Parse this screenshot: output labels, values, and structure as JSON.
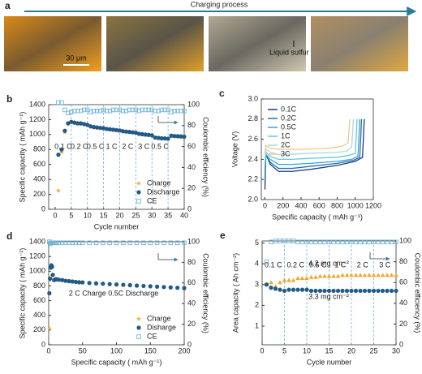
{
  "panel_a": {
    "label": "a",
    "title": "Charging process",
    "scale_bar": "30 μm",
    "annotation": "Liquid sulfur"
  },
  "chart_data": [
    {
      "type": "scatter",
      "panel_label": "b",
      "xlabel": "Cycle number",
      "ylabel": "Specific capacity ( mAh g⁻¹)",
      "y2label": "Coulombic efficiency (%)",
      "xlim": [
        -2,
        40
      ],
      "xticks": [
        0,
        5,
        10,
        15,
        20,
        25,
        30,
        35,
        40
      ],
      "ylim": [
        0,
        1400
      ],
      "yticks": [
        0,
        200,
        400,
        600,
        800,
        1000,
        1200,
        1400
      ],
      "y2lim": [
        0,
        100
      ],
      "y2ticks": [
        0,
        20,
        40,
        60,
        80,
        100
      ],
      "dividers": [
        5,
        10,
        15,
        20,
        25,
        30,
        35
      ],
      "rate_labels": [
        "0.1 C",
        "0.2 C",
        "0.5 C",
        "1 C",
        "2 C",
        "3 C",
        "0.5 C"
      ],
      "legend": "lower right",
      "x": [
        1,
        2,
        3,
        4,
        5,
        6,
        7,
        8,
        9,
        10,
        11,
        12,
        13,
        14,
        15,
        16,
        17,
        18,
        19,
        20,
        21,
        22,
        23,
        24,
        25,
        26,
        27,
        28,
        29,
        30,
        31,
        32,
        33,
        34,
        35,
        36,
        37,
        38,
        39,
        40
      ],
      "series": [
        {
          "name": "Charge",
          "color": "#f0a830",
          "marker": "star",
          "values": [
            250,
            760,
            1030,
            1140,
            1160,
            1150,
            1145,
            1140,
            1135,
            1125,
            1105,
            1095,
            1090,
            1085,
            1080,
            1070,
            1065,
            1060,
            1055,
            1050,
            1040,
            1035,
            1030,
            1025,
            1020,
            1005,
            1000,
            995,
            990,
            985,
            955,
            950,
            945,
            943,
            940,
            980,
            975,
            973,
            970,
            967
          ]
        },
        {
          "name": "Discharge",
          "color": "#1f5a8a",
          "marker": "circle",
          "values": [
            730,
            800,
            1050,
            1150,
            1170,
            1160,
            1150,
            1150,
            1140,
            1130,
            1110,
            1100,
            1095,
            1090,
            1085,
            1075,
            1070,
            1065,
            1060,
            1055,
            1045,
            1040,
            1035,
            1030,
            1025,
            1010,
            1005,
            1000,
            995,
            990,
            960,
            955,
            950,
            948,
            945,
            985,
            980,
            978,
            975,
            972
          ]
        },
        {
          "name": "CE",
          "color": "#6fb6d8",
          "marker": "square-open",
          "axis": "y2",
          "values": [
            102,
            102,
            95,
            92,
            93,
            94,
            94,
            94,
            95,
            95,
            93,
            94,
            94,
            94,
            95,
            94,
            94,
            95,
            95,
            95,
            94,
            94,
            95,
            95,
            95,
            94,
            95,
            95,
            95,
            95,
            94,
            94,
            95,
            95,
            95,
            93,
            94,
            94,
            94,
            94
          ]
        }
      ]
    },
    {
      "type": "line",
      "panel_label": "c",
      "xlabel": "Specific capacity ( mAh g⁻¹)",
      "ylabel": "Voltage (V)",
      "xlim": [
        -40,
        1200
      ],
      "xticks": [
        0,
        200,
        400,
        600,
        800,
        1000,
        1200
      ],
      "ylim": [
        2.0,
        3.0
      ],
      "yticks": [
        {
          "value": 2,
          "label": "2.0"
        },
        2.2,
        2.4,
        2.6,
        2.8,
        {
          "value": 3,
          "label": "3.0"
        }
      ],
      "legend": "upper left",
      "series": [
        {
          "name": "0.1C",
          "color": "#1b3e78",
          "x": [
            0,
            10,
            60,
            150,
            300,
            500,
            800,
            1000,
            1080,
            1090,
            1100
          ],
          "values": [
            2.1,
            2.45,
            2.35,
            2.28,
            2.28,
            2.3,
            2.34,
            2.38,
            2.42,
            2.6,
            2.8
          ]
        },
        {
          "name": "0.2C",
          "color": "#2270b5",
          "x": [
            0,
            10,
            60,
            150,
            300,
            500,
            800,
            980,
            1050,
            1060,
            1070
          ],
          "values": [
            2.2,
            2.44,
            2.37,
            2.31,
            2.31,
            2.33,
            2.36,
            2.39,
            2.42,
            2.6,
            2.8
          ]
        },
        {
          "name": "0.5C",
          "color": "#3aa0d8",
          "x": [
            0,
            10,
            60,
            150,
            300,
            500,
            800,
            960,
            1030,
            1040,
            1050
          ],
          "values": [
            2.3,
            2.45,
            2.4,
            2.35,
            2.35,
            2.36,
            2.38,
            2.4,
            2.43,
            2.6,
            2.8
          ]
        },
        {
          "name": "1C",
          "color": "#66c6e2",
          "x": [
            0,
            10,
            60,
            150,
            300,
            500,
            800,
            930,
            1000,
            1010,
            1020
          ],
          "values": [
            2.35,
            2.47,
            2.43,
            2.4,
            2.4,
            2.41,
            2.42,
            2.44,
            2.46,
            2.62,
            2.8
          ]
        },
        {
          "name": "2C",
          "color": "#a8dbe3",
          "x": [
            0,
            10,
            60,
            150,
            300,
            500,
            800,
            900,
            960,
            970,
            980
          ],
          "values": [
            2.4,
            2.5,
            2.47,
            2.45,
            2.45,
            2.46,
            2.47,
            2.48,
            2.52,
            2.65,
            2.8
          ]
        },
        {
          "name": "3C",
          "color": "#f0c88a",
          "x": [
            0,
            10,
            60,
            150,
            300,
            500,
            700,
            850,
            920,
            930,
            940
          ],
          "values": [
            2.45,
            2.54,
            2.51,
            2.5,
            2.5,
            2.5,
            2.51,
            2.53,
            2.56,
            2.68,
            2.8
          ]
        }
      ]
    },
    {
      "type": "scatter",
      "panel_label": "d",
      "xlabel": "Specific capacity ( mAh g⁻¹)",
      "ylabel": "Specific capacity ( mAh g⁻¹)",
      "y2label": "Coulombic efficiency (%)",
      "xlim": [
        0,
        200
      ],
      "xticks": [
        0,
        50,
        100,
        150,
        200
      ],
      "ylim": [
        0,
        1400
      ],
      "yticks": [
        0,
        200,
        400,
        600,
        800,
        1000,
        1200,
        1400
      ],
      "y2lim": [
        0,
        100
      ],
      "y2ticks": [
        0,
        20,
        40,
        60,
        80,
        100
      ],
      "annotations": [
        "2 C Charge 0.5C Discharge"
      ],
      "legend": "lower right",
      "x": [
        1,
        2,
        3,
        4,
        5,
        6,
        8,
        10,
        12,
        15,
        20,
        25,
        30,
        35,
        40,
        45,
        50,
        60,
        70,
        80,
        90,
        100,
        110,
        120,
        130,
        140,
        150,
        160,
        170,
        180,
        190,
        200
      ],
      "series": [
        {
          "name": "Charge",
          "color": "#f0a830",
          "marker": "star",
          "values": [
            220,
            880,
            1040,
            1075,
            1055,
            945,
            875,
            885,
            885,
            880,
            875,
            865,
            860,
            855,
            850,
            845,
            843,
            835,
            830,
            825,
            820,
            815,
            810,
            805,
            800,
            795,
            790,
            785,
            780,
            775,
            770,
            765
          ]
        },
        {
          "name": "Disharge",
          "color": "#1f5a8a",
          "marker": "circle",
          "values": [
            700,
            900,
            1050,
            1080,
            1060,
            950,
            880,
            890,
            890,
            885,
            880,
            870,
            865,
            860,
            855,
            850,
            848,
            840,
            835,
            830,
            825,
            820,
            815,
            810,
            805,
            800,
            795,
            790,
            785,
            780,
            775,
            770
          ]
        },
        {
          "name": "CE",
          "color": "#6fb6d8",
          "marker": "square-open",
          "axis": "y2",
          "values": [
            100,
            98,
            99,
            99,
            99,
            99,
            99,
            99,
            99,
            99,
            99,
            99,
            99,
            99,
            99,
            99,
            99,
            99,
            99,
            99,
            99,
            99,
            99,
            99,
            99,
            99,
            99,
            99,
            99,
            99,
            99,
            99
          ]
        }
      ]
    },
    {
      "type": "scatter",
      "panel_label": "e",
      "xlabel": "Cycle number",
      "ylabel": "Area capacity ( Ah cm⁻²)",
      "y2label": "Coulombic efficiency (%)",
      "xlim": [
        0,
        30
      ],
      "xticks": [
        0,
        5,
        10,
        15,
        20,
        25,
        30
      ],
      "ylim": [
        0.1,
        5.1
      ],
      "yticks": [
        1,
        2,
        3,
        4,
        5
      ],
      "y2lim": [
        0,
        100
      ],
      "y2ticks": [
        0,
        20,
        40,
        60,
        80,
        100
      ],
      "dividers": [
        5,
        10,
        15,
        20,
        25
      ],
      "rate_labels": [
        "0.1 C",
        "0.2 C",
        "0.5 C",
        "1 C",
        "2 C",
        "3 C"
      ],
      "annotations": [
        "4.2 mg cm⁻²",
        "3.3 mg cm⁻²"
      ],
      "x": [
        1,
        2,
        3,
        4,
        5,
        6,
        7,
        8,
        9,
        10,
        11,
        12,
        13,
        14,
        15,
        16,
        17,
        18,
        19,
        20,
        21,
        22,
        23,
        24,
        25,
        26,
        27,
        28,
        29,
        30
      ],
      "series": [
        {
          "color": "#f0a830",
          "marker": "triangle",
          "values": [
            3.0,
            3.1,
            2.9,
            3.1,
            3.2,
            3.2,
            3.2,
            3.3,
            3.3,
            3.3,
            3.35,
            3.35,
            3.4,
            3.4,
            3.4,
            3.4,
            3.4,
            3.45,
            3.45,
            3.45,
            3.45,
            3.45,
            3.45,
            3.45,
            3.45,
            3.45,
            3.45,
            3.45,
            3.45,
            3.45
          ]
        },
        {
          "color": "#1f5a8a",
          "marker": "circle",
          "values": [
            3.0,
            2.85,
            2.8,
            2.75,
            2.7,
            2.75,
            2.75,
            2.75,
            2.75,
            2.75,
            2.7,
            2.7,
            2.7,
            2.7,
            2.7,
            2.7,
            2.7,
            2.7,
            2.7,
            2.7,
            2.7,
            2.7,
            2.7,
            2.7,
            2.7,
            2.7,
            2.7,
            2.7,
            2.7,
            2.7
          ]
        },
        {
          "color": "#6fb6d8",
          "marker": "square-open",
          "axis": "y2",
          "values": [
            80,
            99,
            100,
            100,
            100,
            100,
            100,
            99,
            99,
            99,
            99,
            99,
            99,
            99,
            99,
            99,
            99,
            99,
            99,
            99,
            99,
            99,
            99,
            99,
            99,
            99,
            99,
            99,
            99,
            99
          ]
        }
      ]
    }
  ]
}
